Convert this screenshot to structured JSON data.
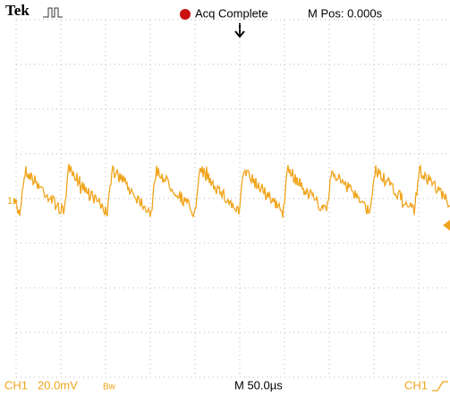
{
  "header": {
    "brand": "Tek",
    "status": "Acq Complete",
    "position": "M Pos: 0.000s"
  },
  "channel_marker": "1",
  "footer": {
    "channel": "CH1",
    "scale": "20.0mV",
    "bandwidth": "Bw",
    "timebase": "M 50.0µs",
    "trigger_source": "CH1"
  }
}
